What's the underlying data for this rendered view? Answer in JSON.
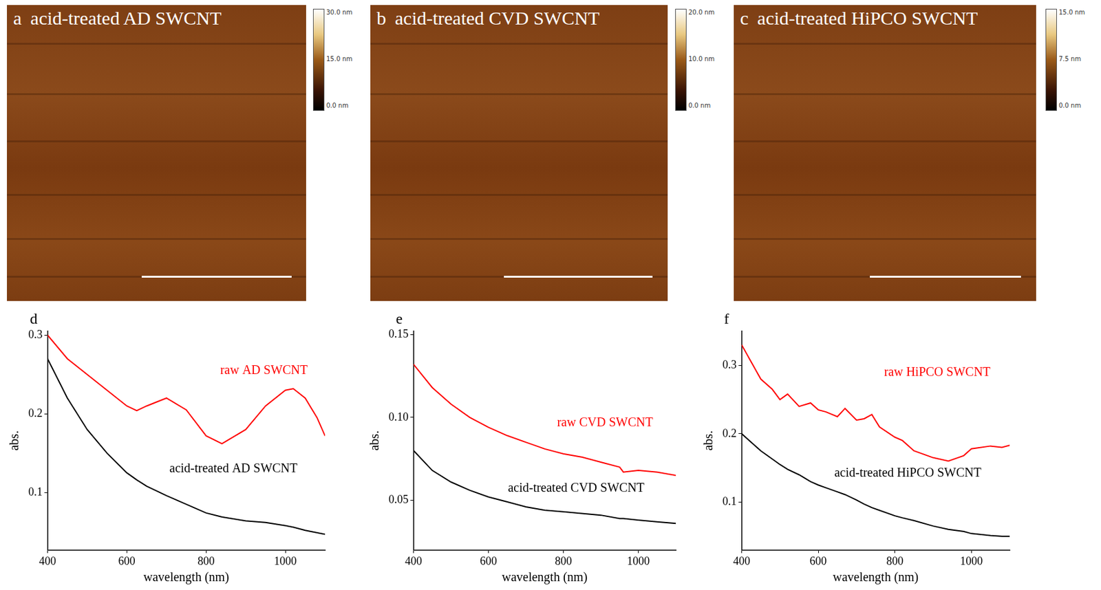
{
  "images": [
    {
      "panel": "a",
      "title": "acid-treated AD SWCNT",
      "colorbar": {
        "range": [
          0,
          30
        ],
        "ticks": [
          {
            "value": 0,
            "label": "0.0 nm"
          },
          {
            "value": 15,
            "label": "15.0 nm"
          },
          {
            "value": 30,
            "label": "30.0 nm"
          }
        ]
      }
    },
    {
      "panel": "b",
      "title": "acid-treated CVD SWCNT",
      "colorbar": {
        "range": [
          0,
          20
        ],
        "ticks": [
          {
            "value": 0,
            "label": "0.0 nm"
          },
          {
            "value": 10,
            "label": "10.0 nm"
          },
          {
            "value": 20,
            "label": "20.0 nm"
          }
        ]
      }
    },
    {
      "panel": "c",
      "title": "acid-treated HiPCO SWCNT",
      "colorbar": {
        "range": [
          0,
          15
        ],
        "ticks": [
          {
            "value": 0,
            "label": "0.0 nm"
          },
          {
            "value": 7.5,
            "label": "7.5 nm"
          },
          {
            "value": 15,
            "label": "15.0 nm"
          }
        ]
      }
    }
  ],
  "chart_data": [
    {
      "type": "line",
      "panel": "d",
      "xlabel": "wavelength (nm)",
      "ylabel": "abs.",
      "grid": false,
      "xlim": [
        400,
        1100
      ],
      "xticks": [
        400,
        600,
        800,
        1000
      ],
      "ylim": [
        0.027,
        0.305
      ],
      "yticks": [
        0.1,
        0.2,
        0.3
      ],
      "x": [
        400,
        450,
        500,
        550,
        600,
        625,
        650,
        700,
        750,
        800,
        840,
        900,
        950,
        1000,
        1020,
        1050,
        1080,
        1100
      ],
      "series": [
        {
          "name": "raw AD SWCNT",
          "color": "#ff0000",
          "values": [
            0.3,
            0.27,
            0.25,
            0.23,
            0.21,
            0.204,
            0.21,
            0.22,
            0.205,
            0.172,
            0.162,
            0.18,
            0.21,
            0.23,
            0.232,
            0.22,
            0.195,
            0.172
          ]
        },
        {
          "name": "acid-treated AD SWCNT",
          "color": "#000000",
          "values": [
            0.27,
            0.22,
            0.18,
            0.15,
            0.125,
            0.116,
            0.108,
            0.096,
            0.085,
            0.074,
            0.069,
            0.064,
            0.062,
            0.058,
            0.056,
            0.052,
            0.049,
            0.047
          ]
        }
      ]
    },
    {
      "type": "line",
      "panel": "e",
      "xlabel": "wavelength (nm)",
      "ylabel": "abs.",
      "grid": false,
      "xlim": [
        400,
        1100
      ],
      "xticks": [
        400,
        600,
        800,
        1000
      ],
      "ylim": [
        0.02,
        0.152
      ],
      "yticks": [
        0.05,
        {
          "value": 0.1,
          "label": "0.10"
        },
        0.15
      ],
      "x": [
        400,
        450,
        500,
        550,
        600,
        650,
        700,
        750,
        800,
        850,
        900,
        950,
        960,
        1000,
        1050,
        1100
      ],
      "series": [
        {
          "name": "raw CVD SWCNT",
          "color": "#ff0000",
          "values": [
            0.132,
            0.118,
            0.108,
            0.1,
            0.094,
            0.089,
            0.085,
            0.081,
            0.078,
            0.076,
            0.073,
            0.07,
            0.067,
            0.068,
            0.067,
            0.065
          ]
        },
        {
          "name": "acid-treated CVD SWCNT",
          "color": "#000000",
          "values": [
            0.08,
            0.068,
            0.061,
            0.056,
            0.052,
            0.049,
            0.046,
            0.044,
            0.043,
            0.042,
            0.041,
            0.039,
            0.039,
            0.038,
            0.037,
            0.036
          ]
        }
      ]
    },
    {
      "type": "line",
      "panel": "f",
      "xlabel": "wavelength (nm)",
      "ylabel": "abs.",
      "grid": false,
      "xlim": [
        400,
        1100
      ],
      "xticks": [
        400,
        600,
        800,
        1000
      ],
      "ylim": [
        0.03,
        0.35
      ],
      "yticks": [
        0.1,
        0.2,
        0.3
      ],
      "x": [
        400,
        420,
        450,
        480,
        500,
        520,
        550,
        580,
        600,
        620,
        650,
        670,
        700,
        720,
        740,
        760,
        800,
        820,
        850,
        900,
        940,
        980,
        1000,
        1050,
        1080,
        1100
      ],
      "series": [
        {
          "name": "raw HiPCO SWCNT",
          "color": "#ff0000",
          "values": [
            0.33,
            0.31,
            0.28,
            0.265,
            0.25,
            0.258,
            0.24,
            0.245,
            0.235,
            0.232,
            0.225,
            0.237,
            0.22,
            0.222,
            0.228,
            0.21,
            0.195,
            0.19,
            0.175,
            0.165,
            0.16,
            0.168,
            0.178,
            0.182,
            0.18,
            0.183
          ]
        },
        {
          "name": "acid-treated HiPCO SWCNT",
          "color": "#000000",
          "values": [
            0.2,
            0.19,
            0.175,
            0.163,
            0.155,
            0.148,
            0.14,
            0.13,
            0.125,
            0.121,
            0.115,
            0.111,
            0.103,
            0.097,
            0.092,
            0.088,
            0.08,
            0.077,
            0.073,
            0.065,
            0.06,
            0.057,
            0.054,
            0.051,
            0.05,
            0.05
          ]
        }
      ]
    }
  ]
}
